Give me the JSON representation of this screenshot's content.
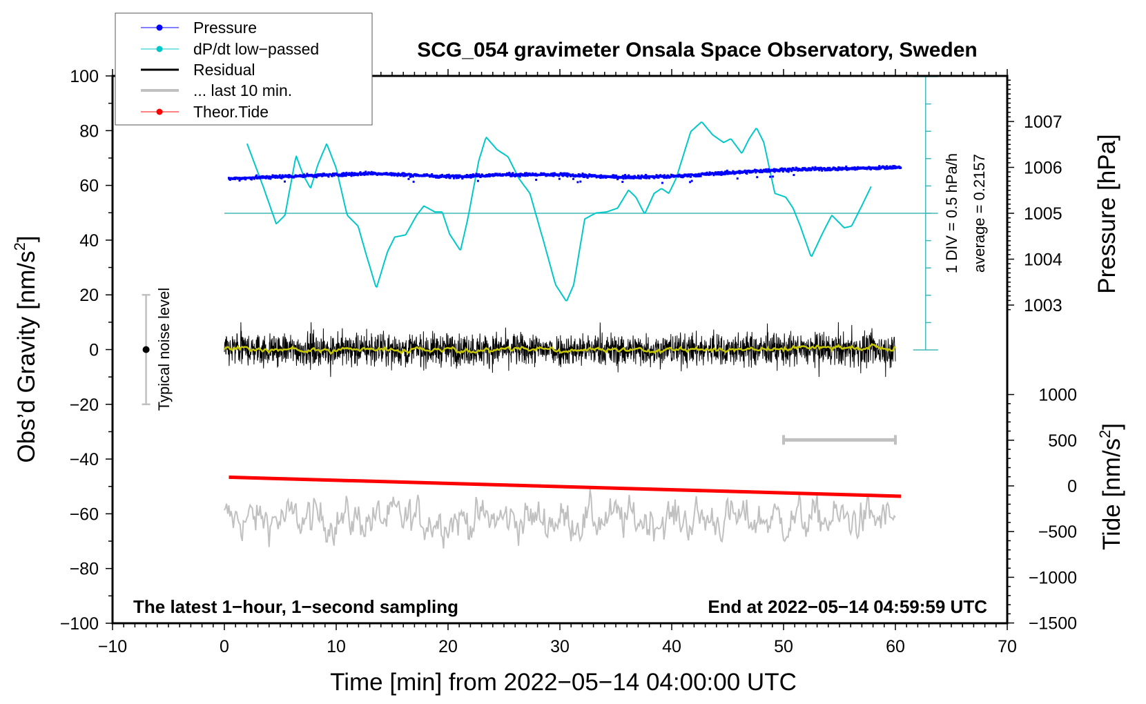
{
  "chart_data": {
    "type": "line",
    "title": "SCG_054 gravimeter Onsala Space Observatory, Sweden",
    "xlabel": "Time [min] from 2022−05−14 04:00:00 UTC",
    "ylabel": "Obs’d Gravity [nm/s",
    "ylabel_sup": "2",
    "ylabel_end": "]",
    "y2label": "Pressure [hPa]",
    "y3label": "Tide [nm/s",
    "y3label_sup": "2",
    "y3label_end": "]",
    "xlim": [
      -10,
      70
    ],
    "ylim": [
      -100,
      100
    ],
    "x_ticks": [
      "−10",
      "0",
      "10",
      "20",
      "30",
      "40",
      "50",
      "60",
      "70"
    ],
    "x_tick_values": [
      -10,
      0,
      10,
      20,
      30,
      40,
      50,
      60,
      70
    ],
    "y_ticks": [
      "−100",
      "−80",
      "−60",
      "−40",
      "−20",
      "0",
      "20",
      "40",
      "60",
      "80",
      "100"
    ],
    "y_tick_values": [
      -100,
      -80,
      -60,
      -40,
      -20,
      0,
      20,
      40,
      60,
      80,
      100
    ],
    "pressure_ticks": [
      "1003",
      "1004",
      "1005",
      "1006",
      "1007"
    ],
    "pressure_tick_values": [
      1003,
      1004,
      1005,
      1006,
      1007
    ],
    "tide_ticks": [
      "−1500",
      "−1000",
      "−500",
      "0",
      "500",
      "1000"
    ],
    "tide_tick_values": [
      -1500,
      -1000,
      -500,
      0,
      500,
      1000
    ],
    "annotations": {
      "bottom_left": "The latest 1−hour, 1−second sampling",
      "bottom_right": "End at 2022−05−14 04:59:59 UTC",
      "div_label": "1 DIV = 0.5 hPa/h",
      "average_label": "average = 0.2157",
      "noise_label": "Typical noise level"
    },
    "legend": {
      "placement": "top-left",
      "entries": [
        {
          "label": "Pressure",
          "color": "#0000ff",
          "marker": true
        },
        {
          "label": "dP/dt low−passed",
          "color": "#00c8c8",
          "marker": true
        },
        {
          "label": "Residual",
          "color": "#000000",
          "marker": false
        },
        {
          "label": "... last 10 min.",
          "color": "#c0c0c0",
          "marker": false
        },
        {
          "label": "Theor.Tide",
          "color": "#ff0000",
          "marker": true
        }
      ]
    },
    "series": {
      "pressure": {
        "name": "Pressure",
        "unit": "hPa",
        "color": "#0000ff",
        "x": [
          0.4,
          5,
          10,
          13,
          20,
          25,
          30,
          35,
          40,
          45,
          50,
          55,
          60.5
        ],
        "y": [
          1005.75,
          1005.8,
          1005.84,
          1005.87,
          1005.8,
          1005.84,
          1005.84,
          1005.79,
          1005.8,
          1005.88,
          1005.95,
          1005.97,
          1006.0
        ]
      },
      "dpdt": {
        "name": "dP/dt low-passed",
        "unit": "hPa/h",
        "color": "#00c8c8",
        "average": 0.2157,
        "div": 0.5,
        "x": [
          2.03,
          3.46,
          4.64,
          5.42,
          6.41,
          7.06,
          7.71,
          8.37,
          9.15,
          10.0,
          10.98,
          11.96,
          12.61,
          13.59,
          14.58,
          15.23,
          16.21,
          17.19,
          17.84,
          18.82,
          19.48,
          20.13,
          21.11,
          21.76,
          22.75,
          23.4,
          24.38,
          25.36,
          26.34,
          27.32,
          28.63,
          29.61,
          30.59,
          31.24,
          32.22,
          33.2,
          34.18,
          35.16,
          36.14,
          36.8,
          37.58,
          38.43,
          39.08,
          39.74,
          40.39,
          41.7,
          42.68,
          43.66,
          44.64,
          45.29,
          46.27,
          46.93,
          47.58,
          48.24,
          49.22,
          50.2,
          50.85,
          51.5,
          52.48,
          53.46,
          54.31,
          55.42,
          56.08,
          57.06,
          57.84
        ],
        "y": [
          1.49,
          0.71,
          0.02,
          0.18,
          1.27,
          0.91,
          0.67,
          1.11,
          1.49,
          1.04,
          0.18,
          -0.02,
          -0.49,
          -1.16,
          -0.49,
          -0.22,
          -0.18,
          0.18,
          0.35,
          0.24,
          0.24,
          -0.16,
          -0.47,
          0.11,
          1.18,
          1.61,
          1.38,
          1.25,
          0.85,
          0.58,
          -0.36,
          -1.09,
          -1.4,
          -1.09,
          0.11,
          0.22,
          0.24,
          0.31,
          0.64,
          0.51,
          0.2,
          0.58,
          0.67,
          0.58,
          0.85,
          1.71,
          1.89,
          1.65,
          1.51,
          1.58,
          1.31,
          1.58,
          1.78,
          1.51,
          0.58,
          0.51,
          0.31,
          -0.02,
          -0.59,
          -0.16,
          0.18,
          -0.05,
          -0.02,
          0.38,
          0.71
        ]
      },
      "residual": {
        "name": "Residual",
        "unit": "nm/s2",
        "color": "#000000",
        "smooth_color": "#c8c800",
        "x_range": [
          0,
          60
        ],
        "mean": 0,
        "typical_amplitude": 5,
        "max_amplitude": 10
      },
      "last10": {
        "name": "... last 10 min.",
        "unit": "nm/s2",
        "color": "#c0c0c0",
        "x_range": [
          0,
          60
        ],
        "mean": -62,
        "typical_amplitude": 6,
        "scale_bar_x": [
          50,
          60
        ],
        "scale_bar_y": -33
      },
      "tide": {
        "name": "Theor.Tide",
        "unit": "nm/s2",
        "color": "#ff0000",
        "x": [
          0.4,
          60.5
        ],
        "y": [
          95,
          -113
        ]
      },
      "noise_level": {
        "x": -7,
        "center": 0,
        "range": [
          -20,
          20
        ]
      }
    }
  }
}
